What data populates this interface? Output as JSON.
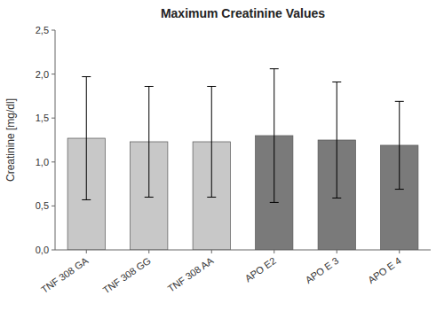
{
  "chart_data": {
    "type": "bar",
    "title": "Maximum Creatinine Values",
    "ylabel": "Creatinine [mg/dl]",
    "categories": [
      "TNF 308 GA",
      "TNF 308 GG",
      "TNF 308 AA",
      "APO E2",
      "APO E 3",
      "APO E 4"
    ],
    "values": [
      1.27,
      1.23,
      1.23,
      1.3,
      1.25,
      1.19
    ],
    "errors": [
      0.7,
      0.63,
      0.63,
      0.76,
      0.66,
      0.5
    ],
    "colors": [
      "#c8c8c8",
      "#c8c8c8",
      "#c8c8c8",
      "#7a7a7a",
      "#7a7a7a",
      "#7a7a7a"
    ],
    "ylim": [
      0.0,
      2.5
    ],
    "yticks": [
      {
        "value": 0.0,
        "label": "0,0"
      },
      {
        "value": 0.5,
        "label": "0,5"
      },
      {
        "value": 1.0,
        "label": "1,0"
      },
      {
        "value": 1.5,
        "label": "1,5"
      },
      {
        "value": 2.0,
        "label": "2,0"
      },
      {
        "value": 2.5,
        "label": "2,5"
      }
    ],
    "grid": false
  }
}
